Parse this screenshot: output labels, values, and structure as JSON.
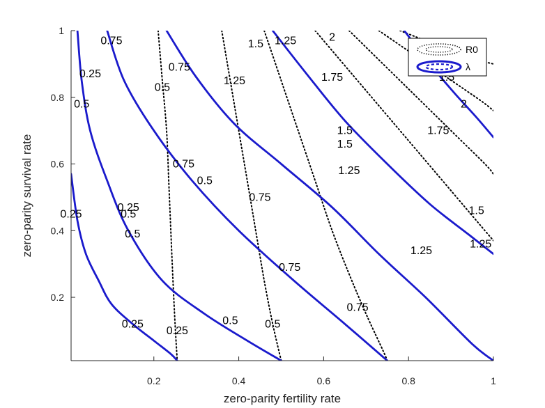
{
  "chart_data": {
    "type": "line",
    "title": "",
    "xlabel": "zero-parity fertility rate",
    "ylabel": "zero-parity survival rate",
    "xlim": [
      0.005,
      1
    ],
    "ylim": [
      0.01,
      1
    ],
    "xticks": [
      0.2,
      0.4,
      0.6,
      0.8,
      1
    ],
    "xtick_labels": [
      "0.2",
      "0.4",
      "0.6",
      "0.8",
      "1"
    ],
    "yticks": [
      0.2,
      0.4,
      0.6,
      0.8,
      1
    ],
    "ytick_labels": [
      "0.2",
      "0.4",
      "0.6",
      "0.8",
      "1"
    ],
    "grid": false,
    "legend_position": "top-right",
    "colors": {
      "lambda": "#1a1acc",
      "r0": "#000000",
      "axis": "#262626"
    },
    "series": [
      {
        "name": "R0",
        "style": "dotted",
        "levels": [
          {
            "level": "0.25",
            "points": [
              [
                0.21,
                1.0
              ],
              [
                0.22,
                0.85
              ],
              [
                0.23,
                0.7
              ],
              [
                0.235,
                0.55
              ],
              [
                0.24,
                0.4
              ],
              [
                0.245,
                0.25
              ],
              [
                0.25,
                0.12
              ],
              [
                0.255,
                0.01
              ]
            ]
          },
          {
            "level": "0.5",
            "points": [
              [
                0.36,
                1.0
              ],
              [
                0.38,
                0.85
              ],
              [
                0.4,
                0.7
              ],
              [
                0.42,
                0.55
              ],
              [
                0.44,
                0.4
              ],
              [
                0.46,
                0.25
              ],
              [
                0.48,
                0.12
              ],
              [
                0.5,
                0.01
              ]
            ]
          },
          {
            "level": "0.75",
            "points": [
              [
                0.46,
                1.0
              ],
              [
                0.5,
                0.85
              ],
              [
                0.54,
                0.7
              ],
              [
                0.58,
                0.55
              ],
              [
                0.62,
                0.4
              ],
              [
                0.66,
                0.27
              ],
              [
                0.7,
                0.15
              ],
              [
                0.74,
                0.04
              ],
              [
                0.75,
                0.01
              ]
            ]
          },
          {
            "level": "1.25",
            "points": [
              [
                0.58,
                1.0
              ],
              [
                0.66,
                0.88
              ],
              [
                0.74,
                0.76
              ],
              [
                0.82,
                0.64
              ],
              [
                0.9,
                0.52
              ],
              [
                0.98,
                0.4
              ],
              [
                1.0,
                0.37
              ]
            ]
          },
          {
            "level": "1.5",
            "points": [
              [
                0.66,
                1.0
              ],
              [
                0.74,
                0.9
              ],
              [
                0.82,
                0.8
              ],
              [
                0.9,
                0.7
              ],
              [
                0.98,
                0.6
              ],
              [
                1.0,
                0.57
              ]
            ]
          },
          {
            "level": "1.75",
            "points": [
              [
                0.73,
                1.0
              ],
              [
                0.81,
                0.93
              ],
              [
                0.89,
                0.86
              ],
              [
                0.97,
                0.79
              ],
              [
                1.0,
                0.76
              ]
            ]
          },
          {
            "level": "2",
            "points": [
              [
                0.78,
                1.0
              ],
              [
                0.86,
                0.96
              ],
              [
                0.94,
                0.92
              ],
              [
                1.0,
                0.9
              ]
            ]
          }
        ],
        "labels": [
          {
            "text": "0.25",
            "x": 0.255,
            "y": 0.1
          },
          {
            "text": "0.5",
            "x": 0.48,
            "y": 0.12
          },
          {
            "text": "0.75",
            "x": 0.68,
            "y": 0.17
          },
          {
            "text": "0.25",
            "x": 0.05,
            "y": 0.87
          },
          {
            "text": "0.5",
            "x": 0.22,
            "y": 0.83
          },
          {
            "text": "0.75",
            "x": 0.26,
            "y": 0.89
          },
          {
            "text": "0.5",
            "x": 0.14,
            "y": 0.45
          },
          {
            "text": "0.5",
            "x": 0.32,
            "y": 0.55
          },
          {
            "text": "0.75",
            "x": 0.45,
            "y": 0.5
          },
          {
            "text": "1.25",
            "x": 0.39,
            "y": 0.85
          },
          {
            "text": "1.5",
            "x": 0.44,
            "y": 0.96
          },
          {
            "text": "1.75",
            "x": 0.62,
            "y": 0.86
          },
          {
            "text": "1.5",
            "x": 0.65,
            "y": 0.66
          },
          {
            "text": "1.25",
            "x": 0.66,
            "y": 0.58
          },
          {
            "text": "1.75",
            "x": 0.87,
            "y": 0.7
          },
          {
            "text": "1.25",
            "x": 0.83,
            "y": 0.34
          },
          {
            "text": "1.5",
            "x": 0.96,
            "y": 0.46
          },
          {
            "text": "2",
            "x": 0.62,
            "y": 0.98
          },
          {
            "text": "1.5",
            "x": 0.89,
            "y": 0.86
          }
        ]
      },
      {
        "name": "λ",
        "style": "solid",
        "levels": [
          {
            "level": "0.25",
            "points": [
              [
                0.005,
                0.57
              ],
              [
                0.02,
                0.43
              ],
              [
                0.04,
                0.33
              ],
              [
                0.07,
                0.25
              ],
              [
                0.1,
                0.18
              ],
              [
                0.15,
                0.12
              ],
              [
                0.2,
                0.07
              ],
              [
                0.24,
                0.03
              ],
              [
                0.255,
                0.01
              ]
            ]
          },
          {
            "level": "0.5",
            "points": [
              [
                0.02,
                1.0
              ],
              [
                0.03,
                0.85
              ],
              [
                0.05,
                0.7
              ],
              [
                0.09,
                0.55
              ],
              [
                0.14,
                0.4
              ],
              [
                0.22,
                0.25
              ],
              [
                0.32,
                0.15
              ],
              [
                0.42,
                0.07
              ],
              [
                0.5,
                0.01
              ]
            ]
          },
          {
            "level": "0.75",
            "points": [
              [
                0.09,
                1.0
              ],
              [
                0.13,
                0.85
              ],
              [
                0.2,
                0.7
              ],
              [
                0.29,
                0.55
              ],
              [
                0.4,
                0.4
              ],
              [
                0.53,
                0.25
              ],
              [
                0.65,
                0.12
              ],
              [
                0.75,
                0.01
              ]
            ]
          },
          {
            "level": "1",
            "points": [
              [
                0.23,
                1.0
              ],
              [
                0.3,
                0.86
              ],
              [
                0.39,
                0.72
              ],
              [
                0.5,
                0.6
              ],
              [
                0.62,
                0.47
              ],
              [
                0.73,
                0.33
              ],
              [
                0.84,
                0.2
              ],
              [
                0.95,
                0.06
              ],
              [
                1.0,
                0.01
              ]
            ]
          },
          {
            "level": "1.25",
            "points": [
              [
                0.48,
                1.0
              ],
              [
                0.56,
                0.87
              ],
              [
                0.65,
                0.73
              ],
              [
                0.75,
                0.6
              ],
              [
                0.85,
                0.48
              ],
              [
                0.94,
                0.39
              ],
              [
                1.0,
                0.33
              ]
            ]
          },
          {
            "level": "2",
            "points": [
              [
                0.79,
                1.0
              ],
              [
                0.85,
                0.9
              ],
              [
                0.91,
                0.81
              ],
              [
                0.96,
                0.74
              ],
              [
                1.0,
                0.68
              ]
            ]
          }
        ],
        "labels": [
          {
            "text": "0.25",
            "x": 0.15,
            "y": 0.12
          },
          {
            "text": "0.5",
            "x": 0.38,
            "y": 0.13
          },
          {
            "text": "0.75",
            "x": 0.52,
            "y": 0.29
          },
          {
            "text": "0.5",
            "x": 0.03,
            "y": 0.78
          },
          {
            "text": "0.75",
            "x": 0.1,
            "y": 0.97
          },
          {
            "text": "0.25",
            "x": 0.14,
            "y": 0.47
          },
          {
            "text": "0.5",
            "x": 0.15,
            "y": 0.39
          },
          {
            "text": "0.75",
            "x": 0.27,
            "y": 0.6
          },
          {
            "text": "1.25",
            "x": 0.51,
            "y": 0.97
          },
          {
            "text": "1.5",
            "x": 0.65,
            "y": 0.7
          },
          {
            "text": "1.25",
            "x": 0.97,
            "y": 0.36
          },
          {
            "text": "2",
            "x": 0.93,
            "y": 0.78
          },
          {
            "text": "0.25",
            "x": 0.005,
            "y": 0.45
          }
        ]
      }
    ],
    "legend": [
      {
        "label": "R0",
        "series": "R0"
      },
      {
        "label": "λ",
        "series": "λ"
      }
    ]
  }
}
